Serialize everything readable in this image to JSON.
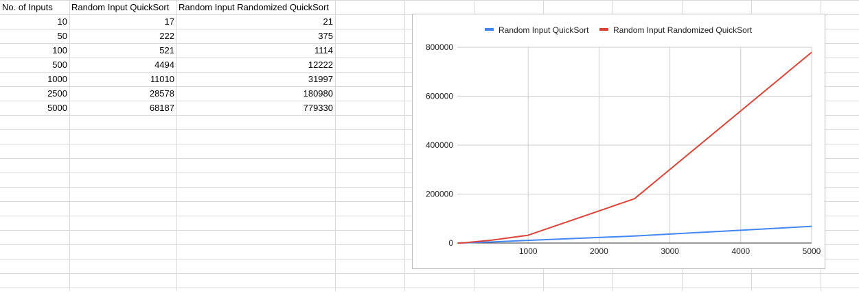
{
  "sheet": {
    "headers": [
      "No. of Inputs",
      "Random Input QuickSort",
      "Random Input Randomized QuickSort"
    ],
    "rows": [
      [
        "10",
        "17",
        "21"
      ],
      [
        "50",
        "222",
        "375"
      ],
      [
        "100",
        "521",
        "1114"
      ],
      [
        "500",
        "4494",
        "12222"
      ],
      [
        "1000",
        "11010",
        "31997"
      ],
      [
        "2500",
        "28578",
        "180980"
      ],
      [
        "5000",
        "68187",
        "779330"
      ]
    ]
  },
  "colors": {
    "series_1": "#4285f4",
    "series_2": "#db4437",
    "gridline": "#d9d9d9"
  },
  "chart_data": {
    "type": "line",
    "title": "",
    "xlabel": "",
    "ylabel": "",
    "legend_position": "top",
    "x": [
      10,
      50,
      100,
      500,
      1000,
      2500,
      5000
    ],
    "xlim": [
      0,
      5000
    ],
    "ylim": [
      0,
      800000
    ],
    "x_ticks": [
      "1000",
      "2000",
      "3000",
      "4000",
      "5000"
    ],
    "y_ticks": [
      "0",
      "200000",
      "400000",
      "600000",
      "800000"
    ],
    "grid": true,
    "series": [
      {
        "name": "Random Input QuickSort",
        "values": [
          17,
          222,
          521,
          4494,
          11010,
          28578,
          68187
        ]
      },
      {
        "name": "Random Input Randomized QuickSort",
        "values": [
          21,
          375,
          1114,
          12222,
          31997,
          180980,
          779330
        ]
      }
    ]
  }
}
